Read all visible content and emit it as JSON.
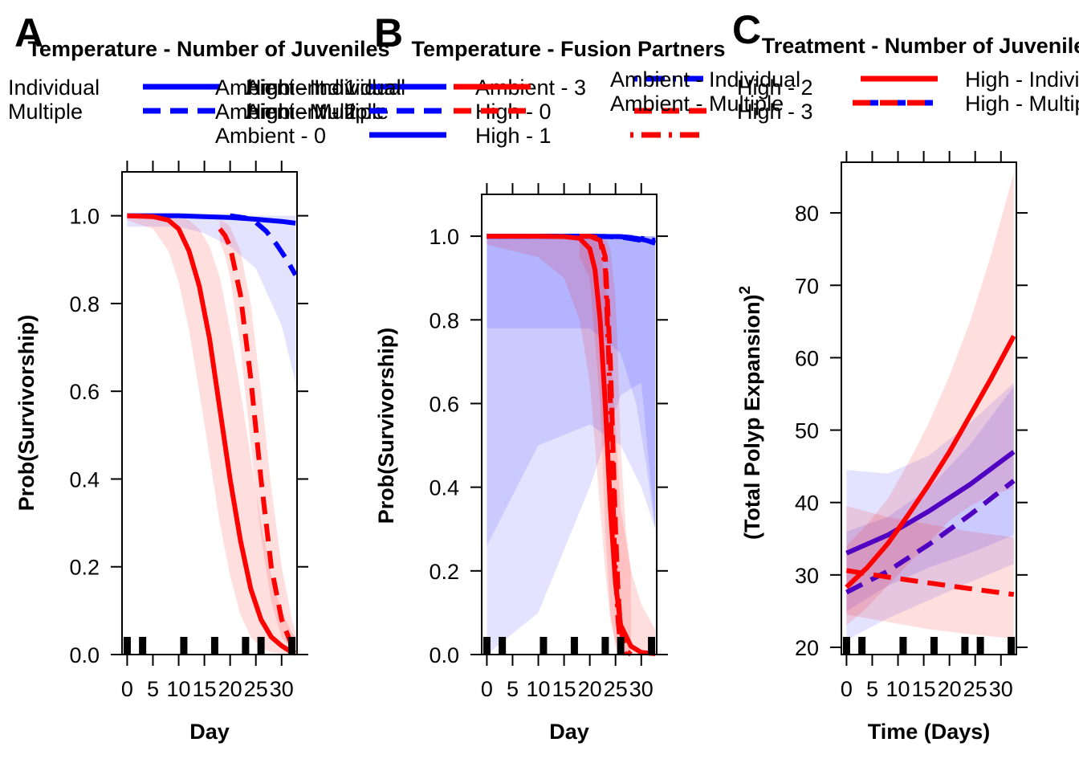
{
  "colors": {
    "blue": "#0000ff",
    "red": "#ff0000",
    "purple": "#5000c0"
  },
  "panels": [
    {
      "letter": "A",
      "title": "Temperature - Number of Juveniles",
      "legend": [
        {
          "label": "Individual",
          "color": "#0000ff",
          "dash": "solid"
        },
        {
          "label": "Multiple",
          "color": "#0000ff",
          "dash": "dashed"
        },
        {
          "label": "Ambient - Individual",
          "color": "#0000ff",
          "dash": "solid"
        },
        {
          "label": "Ambient - Multiple",
          "color": "#0000ff",
          "dash": "dashed"
        },
        {
          "label": "High - Individual",
          "color": "#ff0000",
          "dash": "solid"
        },
        {
          "label": "High - Multiple",
          "color": "#ff0000",
          "dash": "dashed"
        }
      ],
      "xlabel": "Day",
      "ylabel": "Prob(Survivorship)",
      "xticks": [
        "0",
        "5",
        "10",
        "15",
        "20",
        "25",
        "30"
      ],
      "yticks": [
        "0.0",
        "0.2",
        "0.4",
        "0.6",
        "0.8",
        "1.0"
      ]
    },
    {
      "letter": "B",
      "title": "Temperature - Fusion Partners",
      "legend": [
        {
          "label": "Ambient - 0",
          "color": "#0000ff",
          "dash": "solid"
        },
        {
          "label": "Ambient - 1",
          "color": "#0000ff",
          "dash": "dashed"
        },
        {
          "label": "Ambient - 2",
          "color": "#0000ff",
          "dash": "dotdash"
        },
        {
          "label": "Ambient - 3",
          "color": "#ff0000",
          "dash": "solid"
        },
        {
          "label": "High - 0",
          "color": "#ff0000",
          "dash": "dashed"
        },
        {
          "label": "High - 1",
          "color": "#ff0000",
          "dash": "dotdash"
        },
        {
          "label": "High - 2",
          "color": "#0000ff",
          "dash": "dotdash"
        },
        {
          "label": "High - 3",
          "color": "#ff0000",
          "dash": "dashed"
        }
      ],
      "xlabel": "Day",
      "ylabel": "Prob(Survivorship)",
      "xticks": [
        "0",
        "5",
        "10",
        "15",
        "20",
        "25",
        "30"
      ],
      "yticks": [
        "0.0",
        "0.2",
        "0.4",
        "0.6",
        "0.8",
        "1.0"
      ]
    },
    {
      "letter": "C",
      "title": "Treatment - Number of Juveniles",
      "legend": [
        {
          "label": "Ambient - Individual",
          "color": "#0000ff",
          "dash": "solid"
        },
        {
          "label": "Ambient - Multiple",
          "color": "#0000ff",
          "dash": "dashed"
        },
        {
          "label": "High - Individual",
          "color": "#ff0000",
          "dash": "solid"
        },
        {
          "label": "High - Multiple",
          "color": "#ff0000",
          "dash": "dashed"
        }
      ],
      "xlabel": "Time (Days)",
      "ylabel": "(Total Polyp Expansion)",
      "ylabel_sup": "2",
      "xticks": [
        "0",
        "5",
        "10",
        "15",
        "20",
        "25",
        "30"
      ],
      "yticks": [
        "20",
        "30",
        "40",
        "50",
        "60",
        "70",
        "80"
      ]
    }
  ],
  "chart_data": [
    {
      "type": "line",
      "title": "Temperature - Number of Juveniles",
      "xlabel": "Day",
      "ylabel": "Prob(Survivorship)",
      "xlim": [
        -1,
        33
      ],
      "ylim": [
        0,
        1.1
      ],
      "rug_x": [
        0,
        3,
        11,
        17,
        23,
        26,
        32
      ],
      "series": [
        {
          "name": "Ambient - Individual",
          "color": "#0000ff",
          "dash": "solid",
          "x": [
            0,
            5,
            10,
            15,
            20,
            25,
            30,
            32.7
          ],
          "y": [
            1.0,
            1.0,
            1.0,
            0.998,
            0.996,
            0.992,
            0.987,
            0.983
          ],
          "lower": [
            0.975,
            0.975,
            0.975,
            0.96,
            0.93,
            0.88,
            0.75,
            0.62
          ],
          "upper": [
            1.0,
            1.0,
            1.0,
            1.0,
            1.0,
            1.0,
            1.0,
            1.0
          ]
        },
        {
          "name": "Ambient - Multiple",
          "color": "#0000ff",
          "dash": "dashed",
          "x": [
            20,
            23,
            25,
            27,
            29,
            31,
            32.7
          ],
          "y": [
            1.0,
            0.995,
            0.985,
            0.965,
            0.935,
            0.9,
            0.865
          ]
        },
        {
          "name": "High - Individual",
          "color": "#ff0000",
          "dash": "solid",
          "x": [
            0,
            5,
            8,
            10,
            12,
            14,
            16,
            18,
            20,
            22,
            24,
            26,
            28,
            30,
            32,
            32.7
          ],
          "y": [
            1.0,
            0.998,
            0.99,
            0.97,
            0.92,
            0.84,
            0.72,
            0.56,
            0.4,
            0.26,
            0.15,
            0.08,
            0.04,
            0.02,
            0.005,
            0.003
          ],
          "lower": [
            0.99,
            0.97,
            0.92,
            0.85,
            0.74,
            0.6,
            0.45,
            0.3,
            0.18,
            0.09,
            0.04,
            0.015,
            0.005,
            0.002,
            0.0,
            0.0
          ],
          "upper": [
            1.0,
            1.0,
            1.0,
            1.0,
            0.99,
            0.97,
            0.93,
            0.86,
            0.74,
            0.6,
            0.45,
            0.3,
            0.18,
            0.1,
            0.05,
            0.04
          ]
        },
        {
          "name": "High - Multiple",
          "color": "#ff0000",
          "dash": "dashed",
          "x": [
            18,
            19,
            20,
            22,
            24,
            26,
            28,
            30,
            32,
            32.7
          ],
          "y": [
            0.97,
            0.955,
            0.93,
            0.82,
            0.63,
            0.4,
            0.2,
            0.08,
            0.02,
            0.008
          ],
          "lower": [
            0.94,
            0.91,
            0.86,
            0.7,
            0.48,
            0.27,
            0.12,
            0.04,
            0.01,
            0.0
          ],
          "upper": [
            0.99,
            0.985,
            0.975,
            0.92,
            0.8,
            0.6,
            0.38,
            0.2,
            0.08,
            0.05
          ]
        }
      ]
    },
    {
      "type": "line",
      "title": "Temperature - Fusion Partners",
      "xlabel": "Day",
      "ylabel": "Prob(Survivorship)",
      "xlim": [
        -1,
        33
      ],
      "ylim": [
        0,
        1.1
      ],
      "rug_x": [
        0,
        3,
        11,
        17,
        23,
        26,
        32
      ],
      "series": [
        {
          "name": "Ambient - 0",
          "color": "#0000ff",
          "dash": "solid",
          "x": [
            0,
            10,
            20,
            26,
            29,
            31,
            32.7
          ],
          "y": [
            1.0,
            1.0,
            1.0,
            0.999,
            0.995,
            0.99,
            0.983
          ],
          "lower": [
            0.78,
            0.78,
            0.78,
            0.72,
            0.6,
            0.45,
            0.3
          ],
          "upper": [
            1.0,
            1.0,
            1.0,
            1.0,
            1.0,
            1.0,
            1.0
          ]
        },
        {
          "name": "Ambient - 1",
          "color": "#0000ff",
          "dash": "dashed",
          "x": [
            0,
            10,
            20,
            26,
            30,
            32.7
          ],
          "y": [
            1.0,
            1.0,
            1.0,
            0.998,
            0.99,
            0.985
          ],
          "lower": [
            0.26,
            0.5,
            0.55,
            0.5,
            0.4,
            0.3
          ],
          "upper": [
            1.0,
            1.0,
            1.0,
            1.0,
            1.0,
            1.0
          ]
        },
        {
          "name": "Ambient - 2",
          "color": "#0000ff",
          "dash": "dotdash",
          "x": [
            0,
            10,
            20,
            26,
            30,
            32.7
          ],
          "y": [
            1.0,
            1.0,
            1.0,
            0.999,
            0.995,
            0.99
          ],
          "lower": [
            0.0,
            0.1,
            0.4,
            0.62,
            0.65,
            0.3
          ],
          "upper": [
            1.0,
            1.0,
            1.0,
            1.0,
            1.0,
            1.0
          ]
        },
        {
          "name": "Ambient - 3",
          "color": "#ff0000",
          "dash": "solid",
          "x": [
            0,
            10,
            15,
            18,
            20,
            21,
            22,
            23,
            24,
            25,
            26,
            28,
            30,
            32.7
          ],
          "y": [
            1.0,
            1.0,
            0.999,
            0.995,
            0.97,
            0.92,
            0.8,
            0.6,
            0.35,
            0.17,
            0.07,
            0.02,
            0.005,
            0.002
          ],
          "lower": [
            0.98,
            0.95,
            0.9,
            0.8,
            0.65,
            0.5,
            0.35,
            0.2,
            0.08,
            0.03,
            0.01,
            0.0,
            0.0,
            0.0
          ],
          "upper": [
            1.0,
            1.0,
            1.0,
            1.0,
            1.0,
            0.99,
            0.97,
            0.9,
            0.75,
            0.55,
            0.35,
            0.2,
            0.12,
            0.06
          ]
        },
        {
          "name": "High - 0",
          "color": "#ff0000",
          "dash": "dashed",
          "x": [
            18,
            20,
            22,
            23,
            24,
            25,
            25.5,
            26,
            27,
            28
          ],
          "y": [
            1.0,
            1.0,
            0.995,
            0.95,
            0.7,
            0.3,
            0.15,
            0.06,
            0.01,
            0.0
          ],
          "lower": [
            0.95,
            0.9,
            0.6,
            0.3,
            0.1,
            0.02,
            0.0,
            0.0,
            0.0,
            0.0
          ],
          "upper": [
            1.0,
            1.0,
            1.0,
            1.0,
            0.97,
            0.85,
            0.7,
            0.5,
            0.3,
            0.2
          ]
        },
        {
          "name": "High - 1",
          "color": "#ff0000",
          "dash": "dotdash",
          "x": [
            18,
            20,
            22,
            23,
            24,
            24.8,
            25.5,
            26,
            27
          ],
          "y": [
            1.0,
            1.0,
            0.99,
            0.93,
            0.6,
            0.25,
            0.08,
            0.02,
            0.0
          ]
        }
      ]
    },
    {
      "type": "line",
      "title": "Treatment - Number of Juveniles",
      "xlabel": "Time (Days)",
      "ylabel": "(Total Polyp Expansion)",
      "xlim": [
        -1,
        33
      ],
      "ylim": [
        19,
        87
      ],
      "rug_x": [
        0,
        3,
        11,
        17,
        23,
        26,
        32
      ],
      "series": [
        {
          "name": "Ambient - Individual",
          "color": "#0000ff",
          "dash": "solid",
          "x": [
            0,
            8,
            16,
            24,
            32.5
          ],
          "y": [
            33,
            35.5,
            38.8,
            42.5,
            47
          ],
          "lower": [
            25,
            28.5,
            31,
            33,
            35.5
          ],
          "upper": [
            44.5,
            44,
            46.5,
            51,
            56.5
          ]
        },
        {
          "name": "Ambient - Multiple",
          "color": "#0000ff",
          "dash": "dashed",
          "x": [
            0,
            8,
            16,
            24,
            32.5
          ],
          "y": [
            27.6,
            30.5,
            34.2,
            38.3,
            43
          ],
          "lower": [
            21,
            24,
            26.5,
            29,
            31.5
          ],
          "upper": [
            36,
            38,
            42,
            48,
            56
          ]
        },
        {
          "name": "High - Individual",
          "color": "#ff0000",
          "dash": "solid",
          "x": [
            0,
            4,
            8,
            12,
            16,
            20,
            24,
            28,
            32.5
          ],
          "y": [
            28.3,
            31,
            34.3,
            38.3,
            42.5,
            47,
            52,
            57,
            63
          ],
          "lower": [
            23,
            25.5,
            28.5,
            31.5,
            34.5,
            37.5,
            39.5,
            41,
            42
          ],
          "upper": [
            34,
            37,
            40.5,
            45.5,
            51,
            57.5,
            65,
            74,
            85.5
          ]
        },
        {
          "name": "High - Multiple",
          "color": "#ff0000",
          "dash": "dashed",
          "x": [
            0,
            8,
            16,
            24,
            32.5
          ],
          "y": [
            30.6,
            29.7,
            28.9,
            28.1,
            27.3
          ],
          "lower": [
            24.5,
            23.5,
            22.5,
            21.8,
            21.2
          ],
          "upper": [
            39.5,
            38,
            37,
            36,
            35.2
          ]
        }
      ]
    }
  ]
}
